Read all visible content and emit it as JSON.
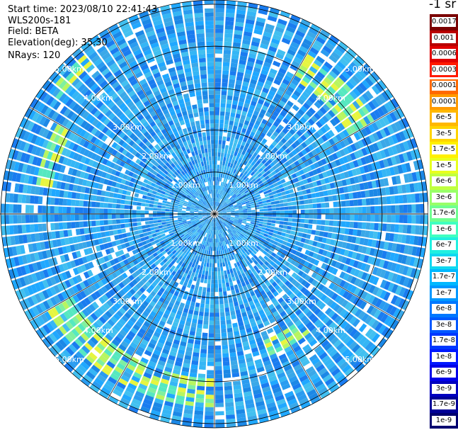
{
  "info": {
    "start_time": "Start time: 2023/08/10 22:41:43",
    "device": "WLS200s-181",
    "field": "Field: BETA",
    "elevation": "Elevation(deg): 35.30",
    "nrays": "NRays: 120"
  },
  "chart_data": {
    "type": "heatmap",
    "projection": "polar",
    "field": "BETA",
    "elevation_deg": 35.3,
    "nrays": 120,
    "range_rings_km": [
      1,
      2,
      3,
      4,
      5
    ],
    "ring_labels": [
      "1.00km",
      "2.00km",
      "3.00km",
      "4.00km",
      "5.00km"
    ],
    "max_range_km": 5.1,
    "colorbar": {
      "unit": "-1 sr",
      "labels": [
        "0.0017",
        "0.001",
        "0.0006",
        "0.0003",
        "0.00017",
        "0.0001",
        "6e-5",
        "3e-5",
        "1.7e-5",
        "1e-5",
        "6e-6",
        "3e-6",
        "1.7e-6",
        "1e-6",
        "6e-7",
        "3e-7",
        "1.7e-7",
        "1e-7",
        "6e-8",
        "3e-8",
        "1.7e-8",
        "1e-8",
        "6e-9",
        "3e-9",
        "1.7e-9",
        "1e-9"
      ],
      "colors": [
        "#7a0000",
        "#b80000",
        "#e00000",
        "#ff1a00",
        "#ff6a00",
        "#ff9a00",
        "#ffb800",
        "#ffd400",
        "#fff000",
        "#e8ff20",
        "#c0ff40",
        "#98ff68",
        "#70ff90",
        "#40ffc0",
        "#20f0e0",
        "#10d8f0",
        "#00b8ff",
        "#0098ff",
        "#0078ff",
        "#0058ff",
        "#0038ff",
        "#0018ff",
        "#0000e8",
        "#0000c0",
        "#000098",
        "#000070"
      ]
    },
    "features": [
      {
        "name": "enhanced arc",
        "azimuth_deg": [
          180,
          240
        ],
        "range_km": [
          3.9,
          4.6
        ],
        "level": "1e-6"
      },
      {
        "name": "enhanced arc",
        "azimuth_deg": [
          30,
          60
        ],
        "range_km": [
          3.7,
          4.4
        ],
        "level": "1.7e-6"
      },
      {
        "name": "enhanced arc",
        "azimuth_deg": [
          140,
          160
        ],
        "range_km": [
          3.2,
          3.6
        ],
        "level": "1e-6"
      },
      {
        "name": "enhanced arc",
        "azimuth_deg": [
          280,
          300
        ],
        "range_km": [
          3.9,
          4.3
        ],
        "level": "1.7e-6"
      },
      {
        "name": "enhanced arc",
        "azimuth_deg": [
          305,
          320
        ],
        "range_km": [
          4.6,
          4.9
        ],
        "level": "1.7e-6"
      }
    ]
  }
}
